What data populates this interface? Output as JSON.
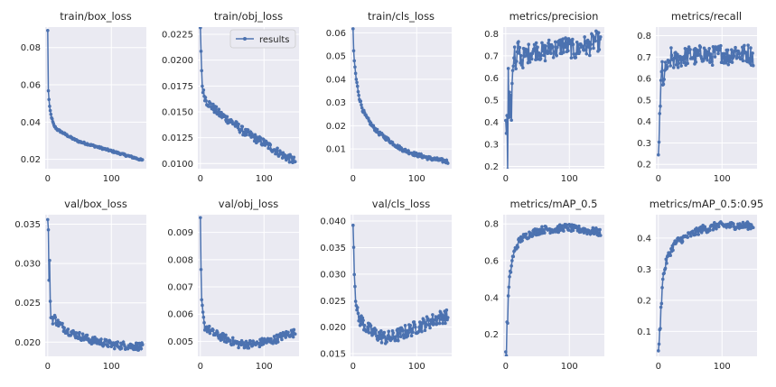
{
  "legend_label": "results",
  "series_color": "#4c72b0",
  "axes_bg": "#eaeaf2",
  "grid_color": "#ffffff",
  "chart_data": [
    {
      "type": "line",
      "title": "train/box_loss",
      "xlim": [
        -4,
        155
      ],
      "ylim": [
        0.015,
        0.091
      ],
      "xticks": [
        0,
        100
      ],
      "yticks": [
        0.02,
        0.04,
        0.06,
        0.08
      ],
      "ytick_labels": [
        "0.02",
        "0.04",
        "0.06",
        "0.08"
      ],
      "series": [
        {
          "x": [
            0,
            1,
            2,
            3,
            5,
            8,
            10,
            15,
            20,
            30,
            40,
            50,
            60,
            70,
            80,
            90,
            100,
            110,
            120,
            130,
            140,
            149
          ],
          "y": [
            0.089,
            0.057,
            0.052,
            0.048,
            0.044,
            0.04,
            0.038,
            0.036,
            0.035,
            0.033,
            0.031,
            0.0295,
            0.0285,
            0.0275,
            0.0265,
            0.0255,
            0.0245,
            0.0235,
            0.0225,
            0.0215,
            0.0205,
            0.0195
          ],
          "noise": 0.0005
        }
      ]
    },
    {
      "type": "line",
      "title": "train/obj_loss",
      "xlim": [
        -4,
        155
      ],
      "ylim": [
        0.0095,
        0.0232
      ],
      "xticks": [
        0,
        100
      ],
      "yticks": [
        0.01,
        0.0125,
        0.015,
        0.0175,
        0.02,
        0.0225
      ],
      "ytick_labels": [
        "0.0100",
        "0.0125",
        "0.0150",
        "0.0175",
        "0.0200",
        "0.0225"
      ],
      "legend": true,
      "series": [
        {
          "x": [
            0,
            1,
            2,
            3,
            5,
            8,
            10,
            15,
            20,
            30,
            40,
            50,
            60,
            70,
            80,
            90,
            100,
            110,
            120,
            130,
            140,
            149
          ],
          "y": [
            0.0229,
            0.021,
            0.019,
            0.0175,
            0.0168,
            0.0163,
            0.016,
            0.0157,
            0.0154,
            0.0148,
            0.0144,
            0.014,
            0.0135,
            0.013,
            0.0127,
            0.0123,
            0.012,
            0.0116,
            0.0112,
            0.0108,
            0.0105,
            0.0102
          ],
          "noise": 0.0004
        }
      ]
    },
    {
      "type": "line",
      "title": "train/cls_loss",
      "xlim": [
        -4,
        155
      ],
      "ylim": [
        0.0015,
        0.0625
      ],
      "xticks": [
        0,
        100
      ],
      "yticks": [
        0.01,
        0.02,
        0.03,
        0.04,
        0.05,
        0.06
      ],
      "ytick_labels": [
        "0.01",
        "0.02",
        "0.03",
        "0.04",
        "0.05",
        "0.06"
      ],
      "series": [
        {
          "x": [
            0,
            1,
            2,
            3,
            5,
            8,
            10,
            15,
            20,
            30,
            40,
            50,
            60,
            70,
            80,
            90,
            100,
            110,
            120,
            130,
            140,
            149
          ],
          "y": [
            0.061,
            0.052,
            0.048,
            0.045,
            0.04,
            0.035,
            0.032,
            0.027,
            0.024,
            0.02,
            0.017,
            0.015,
            0.013,
            0.011,
            0.0095,
            0.0085,
            0.0075,
            0.0068,
            0.006,
            0.0055,
            0.005,
            0.0045
          ],
          "noise": 0.0008
        }
      ]
    },
    {
      "type": "line",
      "title": "metrics/precision",
      "xlim": [
        -4,
        155
      ],
      "ylim": [
        0.19,
        0.83
      ],
      "xticks": [
        0,
        100
      ],
      "yticks": [
        0.2,
        0.3,
        0.4,
        0.5,
        0.6,
        0.7,
        0.8
      ],
      "ytick_labels": [
        "0.2",
        "0.3",
        "0.4",
        "0.5",
        "0.6",
        "0.7",
        "0.8"
      ],
      "series": [
        {
          "x": [
            0,
            1,
            2,
            3,
            4,
            5,
            6,
            7,
            8,
            9,
            10,
            12,
            14,
            16,
            18,
            20,
            25,
            30,
            40,
            50,
            60,
            70,
            80,
            90,
            100,
            110,
            120,
            130,
            140,
            149
          ],
          "y": [
            0.44,
            0.32,
            0.46,
            0.23,
            0.62,
            0.44,
            0.5,
            0.45,
            0.48,
            0.42,
            0.6,
            0.68,
            0.72,
            0.62,
            0.7,
            0.74,
            0.68,
            0.7,
            0.72,
            0.73,
            0.71,
            0.74,
            0.73,
            0.75,
            0.74,
            0.72,
            0.75,
            0.74,
            0.77,
            0.76
          ],
          "noise": 0.045
        }
      ]
    },
    {
      "type": "line",
      "title": "metrics/recall",
      "xlim": [
        -4,
        155
      ],
      "ylim": [
        0.18,
        0.84
      ],
      "xticks": [
        0,
        100
      ],
      "yticks": [
        0.2,
        0.3,
        0.4,
        0.5,
        0.6,
        0.7,
        0.8
      ],
      "ytick_labels": [
        "0.2",
        "0.3",
        "0.4",
        "0.5",
        "0.6",
        "0.7",
        "0.8"
      ],
      "series": [
        {
          "x": [
            0,
            1,
            2,
            3,
            4,
            5,
            6,
            7,
            8,
            10,
            12,
            14,
            16,
            18,
            20,
            25,
            30,
            40,
            50,
            60,
            70,
            80,
            90,
            100,
            110,
            120,
            130,
            140,
            149
          ],
          "y": [
            0.21,
            0.29,
            0.45,
            0.49,
            0.55,
            0.62,
            0.66,
            0.55,
            0.6,
            0.62,
            0.65,
            0.66,
            0.64,
            0.68,
            0.7,
            0.68,
            0.69,
            0.7,
            0.71,
            0.7,
            0.72,
            0.7,
            0.71,
            0.72,
            0.7,
            0.73,
            0.71,
            0.72,
            0.7
          ],
          "noise": 0.045
        }
      ]
    },
    {
      "type": "line",
      "title": "val/box_loss",
      "xlim": [
        -4,
        155
      ],
      "ylim": [
        0.0182,
        0.0362
      ],
      "xticks": [
        0,
        100
      ],
      "yticks": [
        0.02,
        0.025,
        0.03,
        0.035
      ],
      "ytick_labels": [
        "0.020",
        "0.025",
        "0.030",
        "0.035"
      ],
      "series": [
        {
          "x": [
            0,
            1,
            2,
            3,
            4,
            5,
            6,
            8,
            10,
            15,
            20,
            30,
            40,
            50,
            60,
            70,
            80,
            90,
            100,
            110,
            120,
            130,
            140,
            149
          ],
          "y": [
            0.0355,
            0.034,
            0.0282,
            0.0302,
            0.0248,
            0.0235,
            0.0232,
            0.0228,
            0.0232,
            0.0225,
            0.0222,
            0.0215,
            0.0211,
            0.0208,
            0.0205,
            0.0202,
            0.0201,
            0.0199,
            0.0197,
            0.0196,
            0.0196,
            0.0195,
            0.0195,
            0.0194
          ],
          "noise": 0.0005
        }
      ]
    },
    {
      "type": "line",
      "title": "val/obj_loss",
      "xlim": [
        -4,
        155
      ],
      "ylim": [
        0.00445,
        0.00965
      ],
      "xticks": [
        0,
        100
      ],
      "yticks": [
        0.005,
        0.006,
        0.007,
        0.008,
        0.009
      ],
      "ytick_labels": [
        "0.005",
        "0.006",
        "0.007",
        "0.008",
        "0.009"
      ],
      "series": [
        {
          "x": [
            0,
            1,
            2,
            3,
            4,
            5,
            6,
            8,
            10,
            15,
            20,
            30,
            40,
            50,
            60,
            70,
            80,
            90,
            100,
            110,
            120,
            130,
            140,
            149
          ],
          "y": [
            0.0094,
            0.0075,
            0.0065,
            0.0062,
            0.006,
            0.0058,
            0.0056,
            0.0055,
            0.0055,
            0.0054,
            0.0053,
            0.0052,
            0.0051,
            0.005,
            0.0049,
            0.0049,
            0.0049,
            0.0049,
            0.005,
            0.005,
            0.0051,
            0.0052,
            0.0053,
            0.0053
          ],
          "noise": 0.00015
        }
      ]
    },
    {
      "type": "line",
      "title": "val/cls_loss",
      "xlim": [
        -4,
        155
      ],
      "ylim": [
        0.0145,
        0.0412
      ],
      "xticks": [
        0,
        100
      ],
      "yticks": [
        0.015,
        0.02,
        0.025,
        0.03,
        0.035,
        0.04
      ],
      "ytick_labels": [
        "0.015",
        "0.020",
        "0.025",
        "0.030",
        "0.035",
        "0.040"
      ],
      "series": [
        {
          "x": [
            0,
            1,
            2,
            3,
            4,
            5,
            6,
            8,
            10,
            15,
            20,
            30,
            40,
            50,
            60,
            70,
            80,
            90,
            100,
            110,
            120,
            130,
            140,
            149
          ],
          "y": [
            0.0405,
            0.035,
            0.031,
            0.028,
            0.026,
            0.025,
            0.023,
            0.022,
            0.0215,
            0.021,
            0.02,
            0.019,
            0.0185,
            0.018,
            0.018,
            0.0185,
            0.019,
            0.0195,
            0.02,
            0.0205,
            0.021,
            0.0215,
            0.022,
            0.022
          ],
          "noise": 0.0013
        }
      ]
    },
    {
      "type": "line",
      "title": "metrics/mAP_0.5",
      "xlim": [
        -4,
        155
      ],
      "ylim": [
        0.08,
        0.85
      ],
      "xticks": [
        0,
        100
      ],
      "yticks": [
        0.2,
        0.4,
        0.6,
        0.8
      ],
      "ytick_labels": [
        "0.2",
        "0.4",
        "0.6",
        "0.8"
      ],
      "series": [
        {
          "x": [
            0,
            1,
            2,
            3,
            4,
            5,
            6,
            8,
            10,
            12,
            15,
            20,
            25,
            30,
            40,
            50,
            60,
            70,
            80,
            90,
            100,
            110,
            120,
            130,
            140,
            149
          ],
          "y": [
            0.1,
            0.1,
            0.25,
            0.27,
            0.4,
            0.45,
            0.5,
            0.55,
            0.6,
            0.63,
            0.66,
            0.7,
            0.72,
            0.73,
            0.75,
            0.76,
            0.77,
            0.77,
            0.77,
            0.78,
            0.78,
            0.77,
            0.77,
            0.76,
            0.76,
            0.75
          ],
          "noise": 0.02
        }
      ]
    },
    {
      "type": "line",
      "title": "metrics/mAP_0.5:0.95",
      "xlim": [
        -4,
        155
      ],
      "ylim": [
        0.02,
        0.475
      ],
      "xticks": [
        0,
        100
      ],
      "yticks": [
        0.1,
        0.2,
        0.3,
        0.4
      ],
      "ytick_labels": [
        "0.1",
        "0.2",
        "0.3",
        "0.4"
      ],
      "series": [
        {
          "x": [
            0,
            1,
            2,
            3,
            4,
            5,
            6,
            8,
            10,
            12,
            15,
            20,
            25,
            30,
            40,
            50,
            60,
            70,
            80,
            90,
            100,
            110,
            120,
            130,
            140,
            149
          ],
          "y": [
            0.04,
            0.05,
            0.1,
            0.12,
            0.17,
            0.2,
            0.25,
            0.28,
            0.3,
            0.32,
            0.34,
            0.36,
            0.38,
            0.39,
            0.4,
            0.41,
            0.42,
            0.43,
            0.43,
            0.44,
            0.44,
            0.44,
            0.44,
            0.44,
            0.44,
            0.44
          ],
          "noise": 0.012
        }
      ]
    }
  ]
}
